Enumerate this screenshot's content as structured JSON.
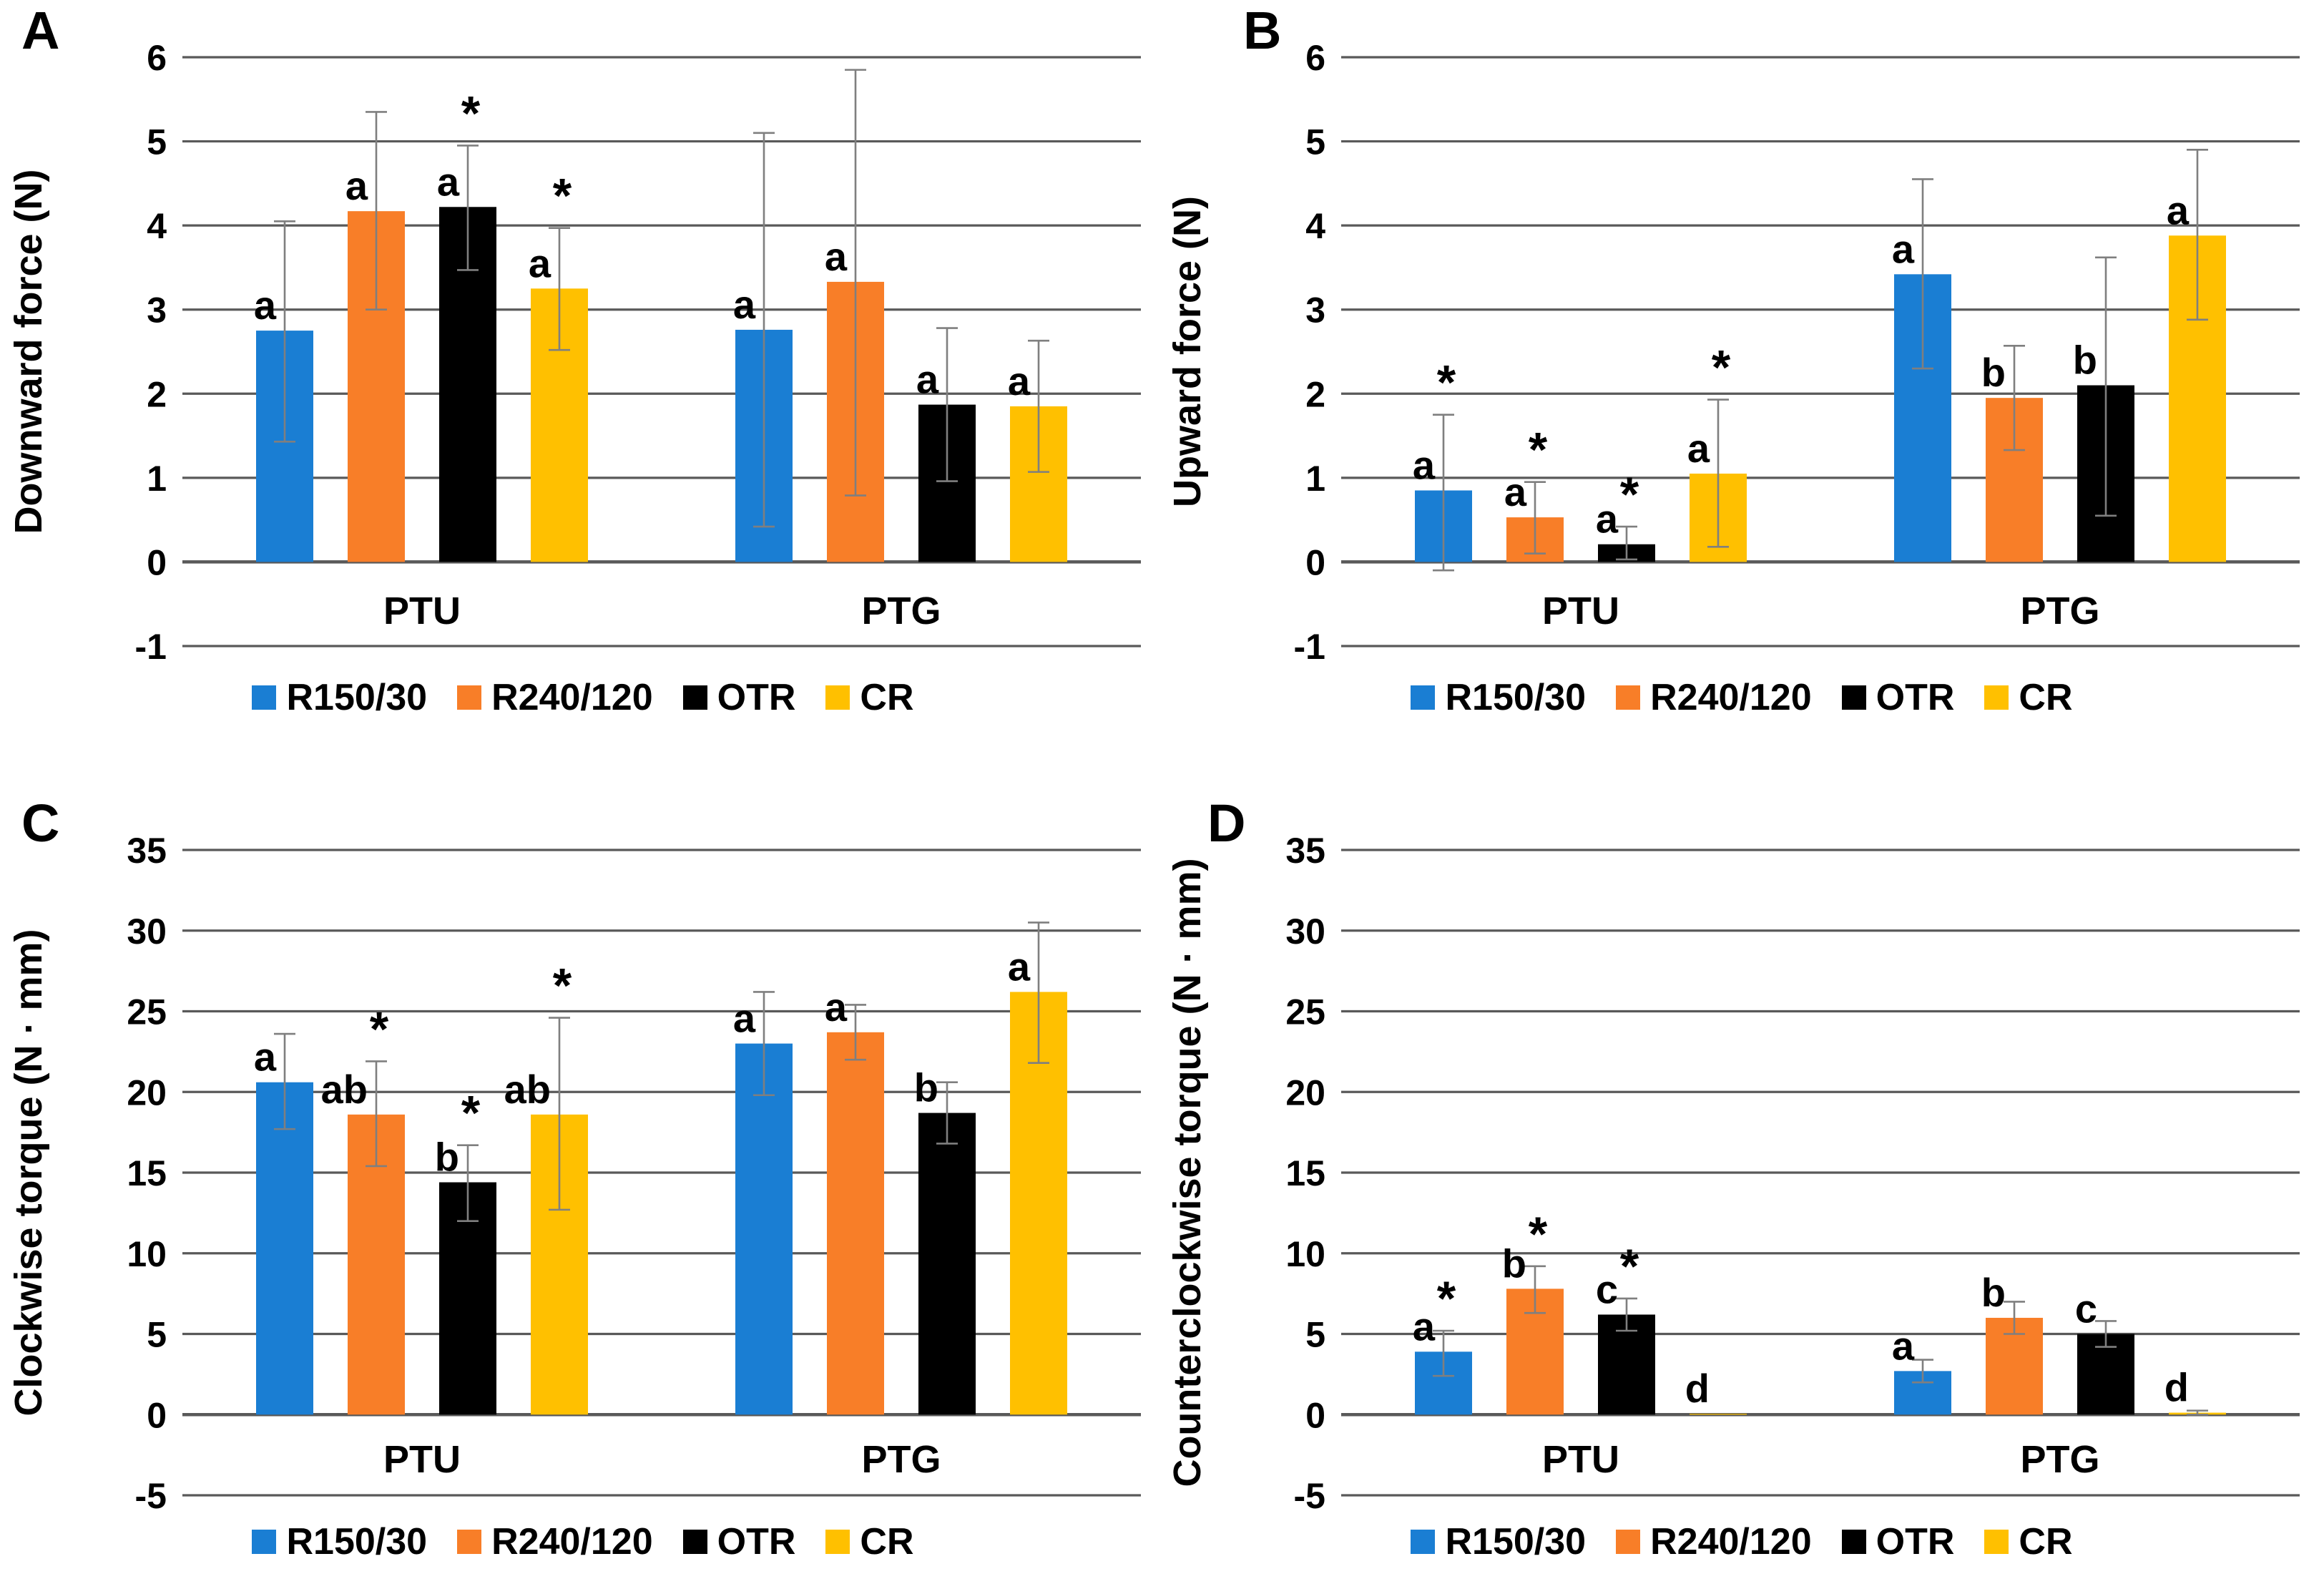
{
  "legend": {
    "series": [
      {
        "label": "R150/30",
        "color": "#1A7ED3"
      },
      {
        "label": "R240/120",
        "color": "#F87E28"
      },
      {
        "label": "OTR",
        "color": "#000000"
      },
      {
        "label": "CR",
        "color": "#FFC000"
      }
    ]
  },
  "grid_color": "#595959",
  "error_bar_color": "#7f7f7f",
  "chart_data": [
    {
      "type": "bar",
      "panel_letter": "A",
      "ylabel": "Downward force (N)",
      "ylim": [
        -1,
        6
      ],
      "ytick_step": 1,
      "grid": true,
      "legend_position": "bottom",
      "categories": [
        "PTU",
        "PTG"
      ],
      "groups": [
        {
          "category": "PTU",
          "bars": [
            {
              "series": "R150/30",
              "value": 2.75,
              "err_low": 1.43,
              "err_high": 4.05,
              "sig": "a",
              "asterisk": false
            },
            {
              "series": "R240/120",
              "value": 4.17,
              "err_low": 3.0,
              "err_high": 5.35,
              "sig": "a",
              "asterisk": false
            },
            {
              "series": "OTR",
              "value": 4.22,
              "err_low": 3.47,
              "err_high": 4.95,
              "sig": "a",
              "asterisk": true
            },
            {
              "series": "CR",
              "value": 3.25,
              "err_low": 2.52,
              "err_high": 3.97,
              "sig": "a",
              "asterisk": true
            }
          ]
        },
        {
          "category": "PTG",
          "bars": [
            {
              "series": "R150/30",
              "value": 2.76,
              "err_low": 0.42,
              "err_high": 5.1,
              "sig": "a",
              "asterisk": false
            },
            {
              "series": "R240/120",
              "value": 3.33,
              "err_low": 0.79,
              "err_high": 5.85,
              "sig": "a",
              "asterisk": false
            },
            {
              "series": "OTR",
              "value": 1.87,
              "err_low": 0.96,
              "err_high": 2.78,
              "sig": "a",
              "asterisk": false
            },
            {
              "series": "CR",
              "value": 1.85,
              "err_low": 1.07,
              "err_high": 2.63,
              "sig": "a",
              "asterisk": false
            }
          ]
        }
      ]
    },
    {
      "type": "bar",
      "panel_letter": "B",
      "ylabel": "Upward force (N)",
      "ylim": [
        -1,
        6
      ],
      "ytick_step": 1,
      "grid": true,
      "legend_position": "bottom",
      "categories": [
        "PTU",
        "PTG"
      ],
      "groups": [
        {
          "category": "PTU",
          "bars": [
            {
              "series": "R150/30",
              "value": 0.85,
              "err_low": -0.1,
              "err_high": 1.75,
              "sig": "a",
              "asterisk": true
            },
            {
              "series": "R240/120",
              "value": 0.53,
              "err_low": 0.1,
              "err_high": 0.95,
              "sig": "a",
              "asterisk": true
            },
            {
              "series": "OTR",
              "value": 0.21,
              "err_low": 0.03,
              "err_high": 0.42,
              "sig": "a",
              "asterisk": true
            },
            {
              "series": "CR",
              "value": 1.05,
              "err_low": 0.18,
              "err_high": 1.93,
              "sig": "a",
              "asterisk": true
            }
          ]
        },
        {
          "category": "PTG",
          "bars": [
            {
              "series": "R150/30",
              "value": 3.42,
              "err_low": 2.3,
              "err_high": 4.55,
              "sig": "a",
              "asterisk": false
            },
            {
              "series": "R240/120",
              "value": 1.95,
              "err_low": 1.33,
              "err_high": 2.57,
              "sig": "b",
              "asterisk": false
            },
            {
              "series": "OTR",
              "value": 2.1,
              "err_low": 0.55,
              "err_high": 3.62,
              "sig": "b",
              "asterisk": false
            },
            {
              "series": "CR",
              "value": 3.88,
              "err_low": 2.88,
              "err_high": 4.9,
              "sig": "a",
              "asterisk": false
            }
          ]
        }
      ]
    },
    {
      "type": "bar",
      "panel_letter": "C",
      "ylabel": "Clockwise torque (N · mm)",
      "ylim": [
        -5,
        35
      ],
      "ytick_step": 5,
      "grid": true,
      "legend_position": "bottom",
      "categories": [
        "PTU",
        "PTG"
      ],
      "groups": [
        {
          "category": "PTU",
          "bars": [
            {
              "series": "R150/30",
              "value": 20.6,
              "err_low": 17.7,
              "err_high": 23.6,
              "sig": "a",
              "asterisk": false
            },
            {
              "series": "R240/120",
              "value": 18.6,
              "err_low": 15.4,
              "err_high": 21.9,
              "sig": "ab",
              "asterisk": true
            },
            {
              "series": "OTR",
              "value": 14.4,
              "err_low": 12.0,
              "err_high": 16.7,
              "sig": "b",
              "asterisk": true
            },
            {
              "series": "CR",
              "value": 18.6,
              "err_low": 12.7,
              "err_high": 24.6,
              "sig": "ab",
              "asterisk": true
            }
          ]
        },
        {
          "category": "PTG",
          "bars": [
            {
              "series": "R150/30",
              "value": 23.0,
              "err_low": 19.8,
              "err_high": 26.2,
              "sig": "a",
              "asterisk": false
            },
            {
              "series": "R240/120",
              "value": 23.7,
              "err_low": 22.0,
              "err_high": 25.4,
              "sig": "a",
              "asterisk": false
            },
            {
              "series": "OTR",
              "value": 18.7,
              "err_low": 16.8,
              "err_high": 20.6,
              "sig": "b",
              "asterisk": false
            },
            {
              "series": "CR",
              "value": 26.2,
              "err_low": 21.8,
              "err_high": 30.5,
              "sig": "a",
              "asterisk": false
            }
          ]
        }
      ]
    },
    {
      "type": "bar",
      "panel_letter": "D",
      "ylabel": "Counterclockwise torque (N · mm)",
      "ylim": [
        -5,
        35
      ],
      "ytick_step": 5,
      "grid": true,
      "legend_position": "bottom",
      "categories": [
        "PTU",
        "PTG"
      ],
      "groups": [
        {
          "category": "PTU",
          "bars": [
            {
              "series": "R150/30",
              "value": 3.9,
              "err_low": 2.4,
              "err_high": 5.2,
              "sig": "a",
              "asterisk": true
            },
            {
              "series": "R240/120",
              "value": 7.8,
              "err_low": 6.3,
              "err_high": 9.2,
              "sig": "b",
              "asterisk": true
            },
            {
              "series": "OTR",
              "value": 6.2,
              "err_low": 5.2,
              "err_high": 7.2,
              "sig": "c",
              "asterisk": true
            },
            {
              "series": "CR",
              "value": 0.05,
              "err_low": null,
              "err_high": null,
              "sig": "d",
              "asterisk": false
            }
          ]
        },
        {
          "category": "PTG",
          "bars": [
            {
              "series": "R150/30",
              "value": 2.7,
              "err_low": 2.0,
              "err_high": 3.4,
              "sig": "a",
              "asterisk": false
            },
            {
              "series": "R240/120",
              "value": 6.0,
              "err_low": 5.0,
              "err_high": 7.0,
              "sig": "b",
              "asterisk": false
            },
            {
              "series": "OTR",
              "value": 5.0,
              "err_low": 4.2,
              "err_high": 5.8,
              "sig": "c",
              "asterisk": false
            },
            {
              "series": "CR",
              "value": 0.12,
              "err_low": 0.0,
              "err_high": 0.25,
              "sig": "d",
              "asterisk": false
            }
          ]
        }
      ]
    }
  ]
}
